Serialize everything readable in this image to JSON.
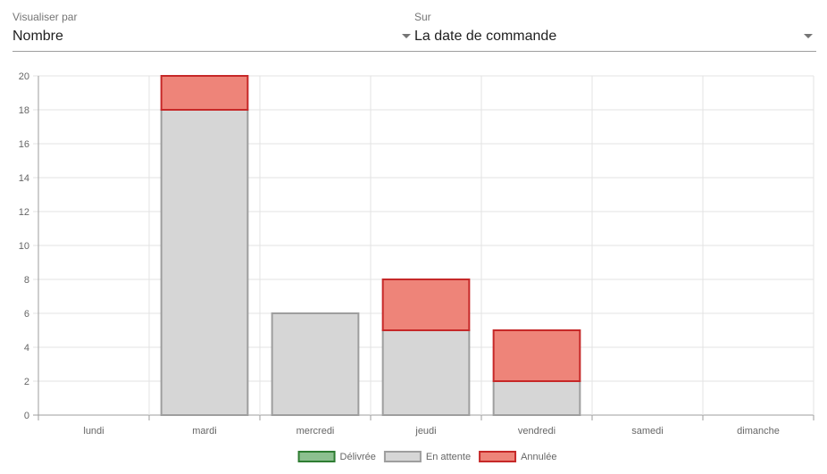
{
  "filters": {
    "visualize_by": {
      "label": "Visualiser par",
      "value": "Nombre"
    },
    "on": {
      "label": "Sur",
      "value": "La date de commande"
    }
  },
  "chart_data": {
    "type": "bar",
    "stacked": true,
    "categories": [
      "lundi",
      "mardi",
      "mercredi",
      "jeudi",
      "vendredi",
      "samedi",
      "dimanche"
    ],
    "series": [
      {
        "name": "Délivrée",
        "values": [
          0,
          0,
          0,
          0,
          0,
          0,
          0
        ],
        "fill": "#8cc08f",
        "stroke": "#2e7d32"
      },
      {
        "name": "En attente",
        "values": [
          0,
          18,
          6,
          5,
          2,
          0,
          0
        ],
        "fill": "#d6d6d6",
        "stroke": "#9e9e9e"
      },
      {
        "name": "Annulée",
        "values": [
          0,
          2,
          0,
          3,
          3,
          0,
          0
        ],
        "fill": "#ee8479",
        "stroke": "#c62828"
      }
    ],
    "yticks": [
      0,
      2,
      4,
      6,
      8,
      10,
      12,
      14,
      16,
      18,
      20
    ],
    "ylim": [
      0,
      20
    ],
    "grid": true,
    "legend_position": "bottom"
  }
}
